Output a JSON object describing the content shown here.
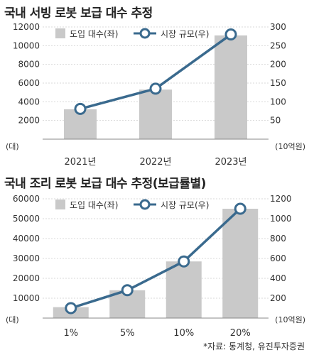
{
  "charts": [
    {
      "title": "국내 서빙 로봇 보급 대수 추정",
      "legend": {
        "bar": "도입 대수(좌)",
        "line": "시장 규모(우)"
      },
      "left_unit": "(대)",
      "right_unit": "(10억원)"
    },
    {
      "title": "국내 조리 로봇 보급 대수 추정(보급률별)",
      "legend": {
        "bar": "도입 대수(좌)",
        "line": "시장 규모(우)"
      },
      "left_unit": "(대)",
      "right_unit": "(10억원)"
    }
  ],
  "source": "*자료: 통계청, 유진투자증권",
  "colors": {
    "bar": "#c9c9c9",
    "line": "#3a6a8e",
    "marker_fill": "#ffffff",
    "grid": "#d9d9d9"
  },
  "chart_data": [
    {
      "type": "bar+line",
      "title": "국내 서빙 로봇 보급 대수 추정",
      "categories": [
        "2021년",
        "2022년",
        "2023년"
      ],
      "series": [
        {
          "name": "도입 대수(좌)",
          "type": "bar",
          "axis": "left",
          "values": [
            3200,
            5300,
            11100
          ]
        },
        {
          "name": "시장 규모(우)",
          "type": "line",
          "axis": "right",
          "values": [
            81,
            135,
            280
          ]
        }
      ],
      "left_axis": {
        "ticks": [
          "0",
          "2000",
          "4000",
          "6000",
          "8000",
          "10000",
          "12000"
        ],
        "range": [
          0,
          12000
        ]
      },
      "right_axis": {
        "ticks": [
          "0",
          "50",
          "100",
          "150",
          "200",
          "250",
          "300"
        ],
        "range": [
          0,
          300
        ]
      },
      "grid": true,
      "legend_position": "top"
    },
    {
      "type": "bar+line",
      "title": "국내 조리 로봇 보급 대수 추정(보급률별)",
      "categories": [
        "1%",
        "5%",
        "10%",
        "20%"
      ],
      "series": [
        {
          "name": "도입 대수(좌)",
          "type": "bar",
          "axis": "left",
          "values": [
            5500,
            14000,
            28500,
            55000
          ]
        },
        {
          "name": "시장 규모(우)",
          "type": "line",
          "axis": "right",
          "values": [
            100,
            280,
            570,
            1100
          ]
        }
      ],
      "left_axis": {
        "ticks": [
          "0",
          "10000",
          "20000",
          "30000",
          "40000",
          "50000",
          "60000"
        ],
        "range": [
          0,
          60000
        ]
      },
      "right_axis": {
        "ticks": [
          "0",
          "200",
          "400",
          "600",
          "800",
          "1000",
          "1200"
        ],
        "range": [
          0,
          1200
        ]
      },
      "grid": true,
      "legend_position": "top"
    }
  ]
}
